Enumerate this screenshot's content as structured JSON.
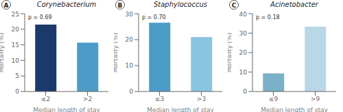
{
  "chart_data": [
    {
      "type": "bar",
      "panel_label": "A",
      "title": "Corynebacterium",
      "categories": [
        "≤2",
        ">2"
      ],
      "values": [
        21.5,
        15.7
      ],
      "colors": [
        "#1b3a6b",
        "#4a9cc7"
      ],
      "ylim": [
        0,
        25
      ],
      "yticks": [
        0,
        5,
        10,
        15,
        20,
        25
      ],
      "annotation": "p = 0.69",
      "xlabel": "Median length of stay",
      "ylabel": "Mortality (%)",
      "grid": false
    },
    {
      "type": "bar",
      "panel_label": "B",
      "title": "Staphylococcus",
      "categories": [
        "≤3",
        ">3"
      ],
      "values": [
        26.5,
        21.0
      ],
      "colors": [
        "#4a9cc7",
        "#8ac4e0"
      ],
      "ylim": [
        0,
        30
      ],
      "yticks": [
        0,
        10,
        20,
        30
      ],
      "annotation": "p = 0.70",
      "xlabel": "Median length of stay",
      "ylabel": "Mortality (%)",
      "grid": false
    },
    {
      "type": "bar",
      "panel_label": "C",
      "title": "Acinetobacter",
      "categories": [
        "≤9",
        ">9"
      ],
      "values": [
        9.3,
        33.3
      ],
      "colors": [
        "#7ab0c8",
        "#b8d8e8"
      ],
      "ylim": [
        0,
        40
      ],
      "yticks": [
        0,
        10,
        20,
        30,
        40
      ],
      "annotation": "p = 0.18",
      "xlabel": "Median length of stay",
      "ylabel": "Mortality (%)",
      "grid": false
    }
  ]
}
